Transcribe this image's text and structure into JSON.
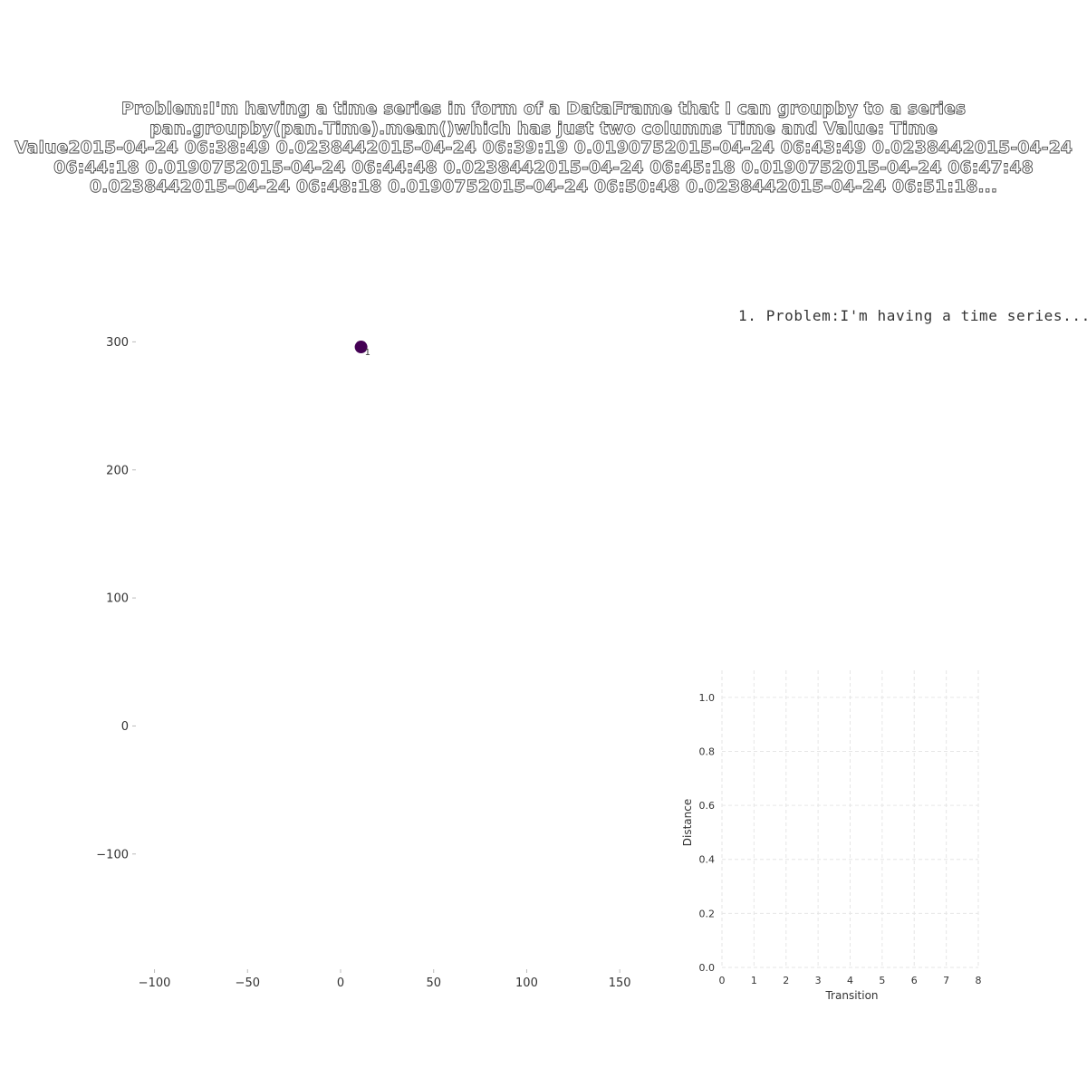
{
  "title": "Problem:I'm having a time series in form of a DataFrame that I can groupby to a series\npan.groupby(pan.Time).mean()which has just two columns Time and Value: Time\nValue2015-04-24 06:38:49 0.0238442015-04-24 06:39:19 0.0190752015-04-24 06:43:49 0.0238442015-04-24\n06:44:18 0.0190752015-04-24 06:44:48 0.0238442015-04-24 06:45:18 0.0190752015-04-24 06:47:48\n0.0238442015-04-24 06:48:18 0.0190752015-04-24 06:50:48 0.0238442015-04-24 06:51:18...",
  "legend": {
    "label": "1. Problem:I'm having a time series..."
  },
  "colors": {
    "point": "#440154",
    "grid": "#e6e6e6",
    "tick": "#333333"
  },
  "chart_data": [
    {
      "type": "scatter",
      "title": "",
      "xlabel": "",
      "ylabel": "",
      "xlim": [
        -110,
        165
      ],
      "ylim": [
        -190,
        330
      ],
      "xticks": [
        -100,
        -50,
        0,
        50,
        100,
        150
      ],
      "xtick_labels": [
        "−100",
        "−50",
        "0",
        "50",
        "100",
        "150"
      ],
      "yticks": [
        -100,
        0,
        100,
        200,
        300
      ],
      "ytick_labels": [
        "−100",
        "0",
        "100",
        "200",
        "300"
      ],
      "grid": false,
      "points": [
        {
          "x": 11,
          "y": 296,
          "label": "1"
        }
      ]
    },
    {
      "type": "line",
      "title": "",
      "xlabel": "Transition",
      "ylabel": "Distance",
      "xlim": [
        -0.1,
        8
      ],
      "ylim": [
        0,
        1.1
      ],
      "xticks": [
        0,
        1,
        2,
        3,
        4,
        5,
        6,
        7,
        8
      ],
      "xtick_labels": [
        "0",
        "1",
        "2",
        "3",
        "4",
        "5",
        "6",
        "7",
        "8"
      ],
      "yticks": [
        0,
        0.2,
        0.4,
        0.6,
        0.8,
        1.0
      ],
      "ytick_labels": [
        "0.0",
        "0.2",
        "0.4",
        "0.6",
        "0.8",
        "1.0"
      ],
      "grid": true,
      "series": []
    }
  ]
}
